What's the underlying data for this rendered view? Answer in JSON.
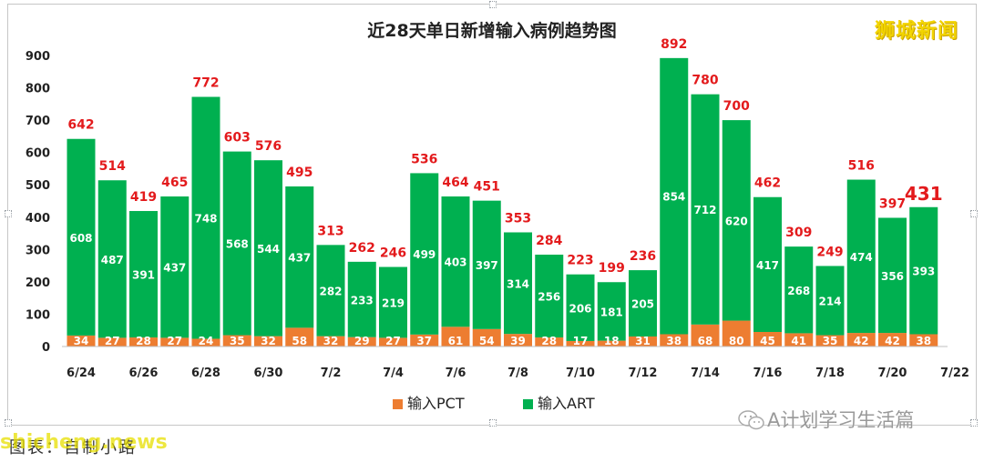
{
  "chart_data": {
    "type": "bar",
    "stacked": true,
    "title": "近28天单日新增输入病例趋势图",
    "ylim": [
      0,
      900
    ],
    "yticks": [
      0,
      100,
      200,
      300,
      400,
      500,
      600,
      700,
      800,
      900
    ],
    "categories": [
      "6/24",
      "6/25",
      "6/26",
      "6/27",
      "6/28",
      "6/29",
      "6/30",
      "7/1",
      "7/2",
      "7/3",
      "7/4",
      "7/5",
      "7/6",
      "7/7",
      "7/8",
      "7/9",
      "7/10",
      "7/11",
      "7/12",
      "7/13",
      "7/14",
      "7/15",
      "7/16",
      "7/17",
      "7/18",
      "7/19",
      "7/20",
      "7/21"
    ],
    "xtick_labels": [
      "6/24",
      "6/26",
      "6/28",
      "6/30",
      "7/2",
      "7/4",
      "7/6",
      "7/8",
      "7/10",
      "7/12",
      "7/14",
      "7/16",
      "7/18",
      "7/20",
      "7/22"
    ],
    "series": [
      {
        "name": "输入PCT",
        "color": "#ed7d31",
        "values": [
          34,
          27,
          28,
          27,
          24,
          35,
          32,
          58,
          32,
          29,
          27,
          37,
          61,
          54,
          39,
          28,
          17,
          18,
          31,
          38,
          68,
          80,
          45,
          41,
          35,
          42,
          42,
          38
        ]
      },
      {
        "name": "输入ART",
        "color": "#00b050",
        "values": [
          608,
          487,
          391,
          437,
          748,
          568,
          544,
          437,
          282,
          233,
          219,
          499,
          403,
          397,
          314,
          256,
          206,
          181,
          205,
          854,
          712,
          620,
          417,
          268,
          214,
          474,
          356,
          393
        ]
      }
    ],
    "totals": [
      642,
      514,
      419,
      465,
      772,
      603,
      576,
      495,
      313,
      262,
      246,
      536,
      464,
      451,
      353,
      284,
      223,
      199,
      236,
      892,
      780,
      700,
      462,
      309,
      249,
      516,
      397,
      431
    ],
    "total_label_color": "#e31a1c",
    "legend_position": "bottom",
    "grid": false
  },
  "overlay": {
    "brand": "狮城新闻",
    "wechat_account": "A计划学习生活篇",
    "caption": "图表：自制小路",
    "site": "shicheng.news"
  }
}
